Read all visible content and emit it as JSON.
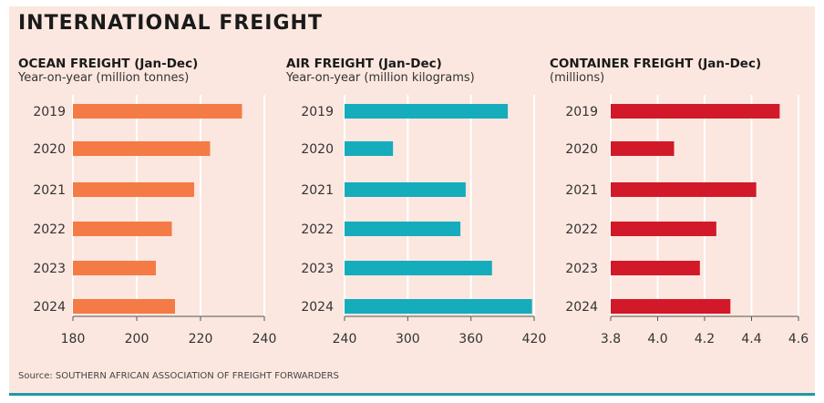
{
  "title": "INTERNATIONAL FREIGHT",
  "source": "Source: SOUTHERN AFRICAN ASSOCIATION OF FREIGHT FORWARDERS",
  "colors": {
    "ocean": "#f47b45",
    "air": "#15acbc",
    "container": "#d2192a",
    "background": "#fbe7df",
    "grid": "#ffffff"
  },
  "chart_data": [
    {
      "type": "bar",
      "orientation": "horizontal",
      "title": "OCEAN FREIGHT (Jan-Dec)",
      "subtitle": "Year-on-year (million tonnes)",
      "categories": [
        "2019",
        "2020",
        "2021",
        "2022",
        "2023",
        "2024"
      ],
      "values": [
        233,
        223,
        218,
        211,
        206,
        212
      ],
      "xlim": [
        180,
        240
      ],
      "ticks": [
        "180",
        "200",
        "220",
        "240"
      ],
      "grid": true
    },
    {
      "type": "bar",
      "orientation": "horizontal",
      "title": "AIR FREIGHT (Jan-Dec)",
      "subtitle": "Year-on-year (million kilograms)",
      "categories": [
        "2019",
        "2020",
        "2021",
        "2022",
        "2023",
        "2024"
      ],
      "values": [
        395,
        286,
        355,
        350,
        380,
        418
      ],
      "xlim": [
        240,
        420
      ],
      "ticks": [
        "240",
        "300",
        "360",
        "420"
      ],
      "grid": true
    },
    {
      "type": "bar",
      "orientation": "horizontal",
      "title": "CONTAINER FREIGHT (Jan-Dec)",
      "subtitle": "(millions)",
      "categories": [
        "2019",
        "2020",
        "2021",
        "2022",
        "2023",
        "2024"
      ],
      "values": [
        4.52,
        4.07,
        4.42,
        4.25,
        4.18,
        4.31
      ],
      "xlim": [
        3.8,
        4.6
      ],
      "ticks": [
        "3.8",
        "4.0",
        "4.2",
        "4.4",
        "4.6"
      ],
      "grid": true
    }
  ]
}
